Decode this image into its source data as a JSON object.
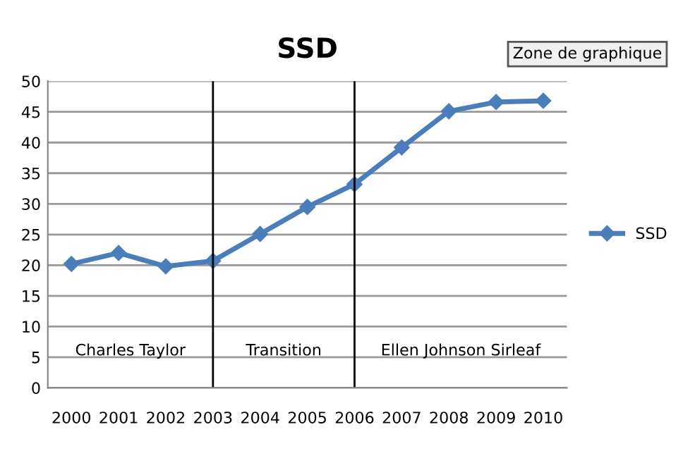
{
  "chart_data": {
    "type": "line",
    "title": "SSD",
    "categories": [
      "2000",
      "2001",
      "2002",
      "2003",
      "2004",
      "2005",
      "2006",
      "2007",
      "2008",
      "2009",
      "2010"
    ],
    "series": [
      {
        "name": "SSD",
        "color": "#4a7ebb",
        "values": [
          20.2,
          22,
          19.8,
          20.7,
          25.1,
          29.5,
          33.2,
          39.2,
          45.1,
          46.6,
          46.8
        ]
      }
    ],
    "ylim": [
      0,
      50
    ],
    "yticks": [
      0,
      5,
      10,
      15,
      20,
      25,
      30,
      35,
      40,
      45,
      50
    ],
    "ref_lines": [
      {
        "axis": "x",
        "value": "2003",
        "color": "#000000"
      },
      {
        "axis": "x",
        "value": "2006",
        "color": "#000000"
      }
    ],
    "annotations": [
      "Charles Taylor",
      "Transition",
      "Ellen Johnson Sirleaf",
      "Zone de graphique"
    ],
    "grid": "y",
    "legend": "right",
    "marker": "diamond",
    "line_style": "solid"
  }
}
